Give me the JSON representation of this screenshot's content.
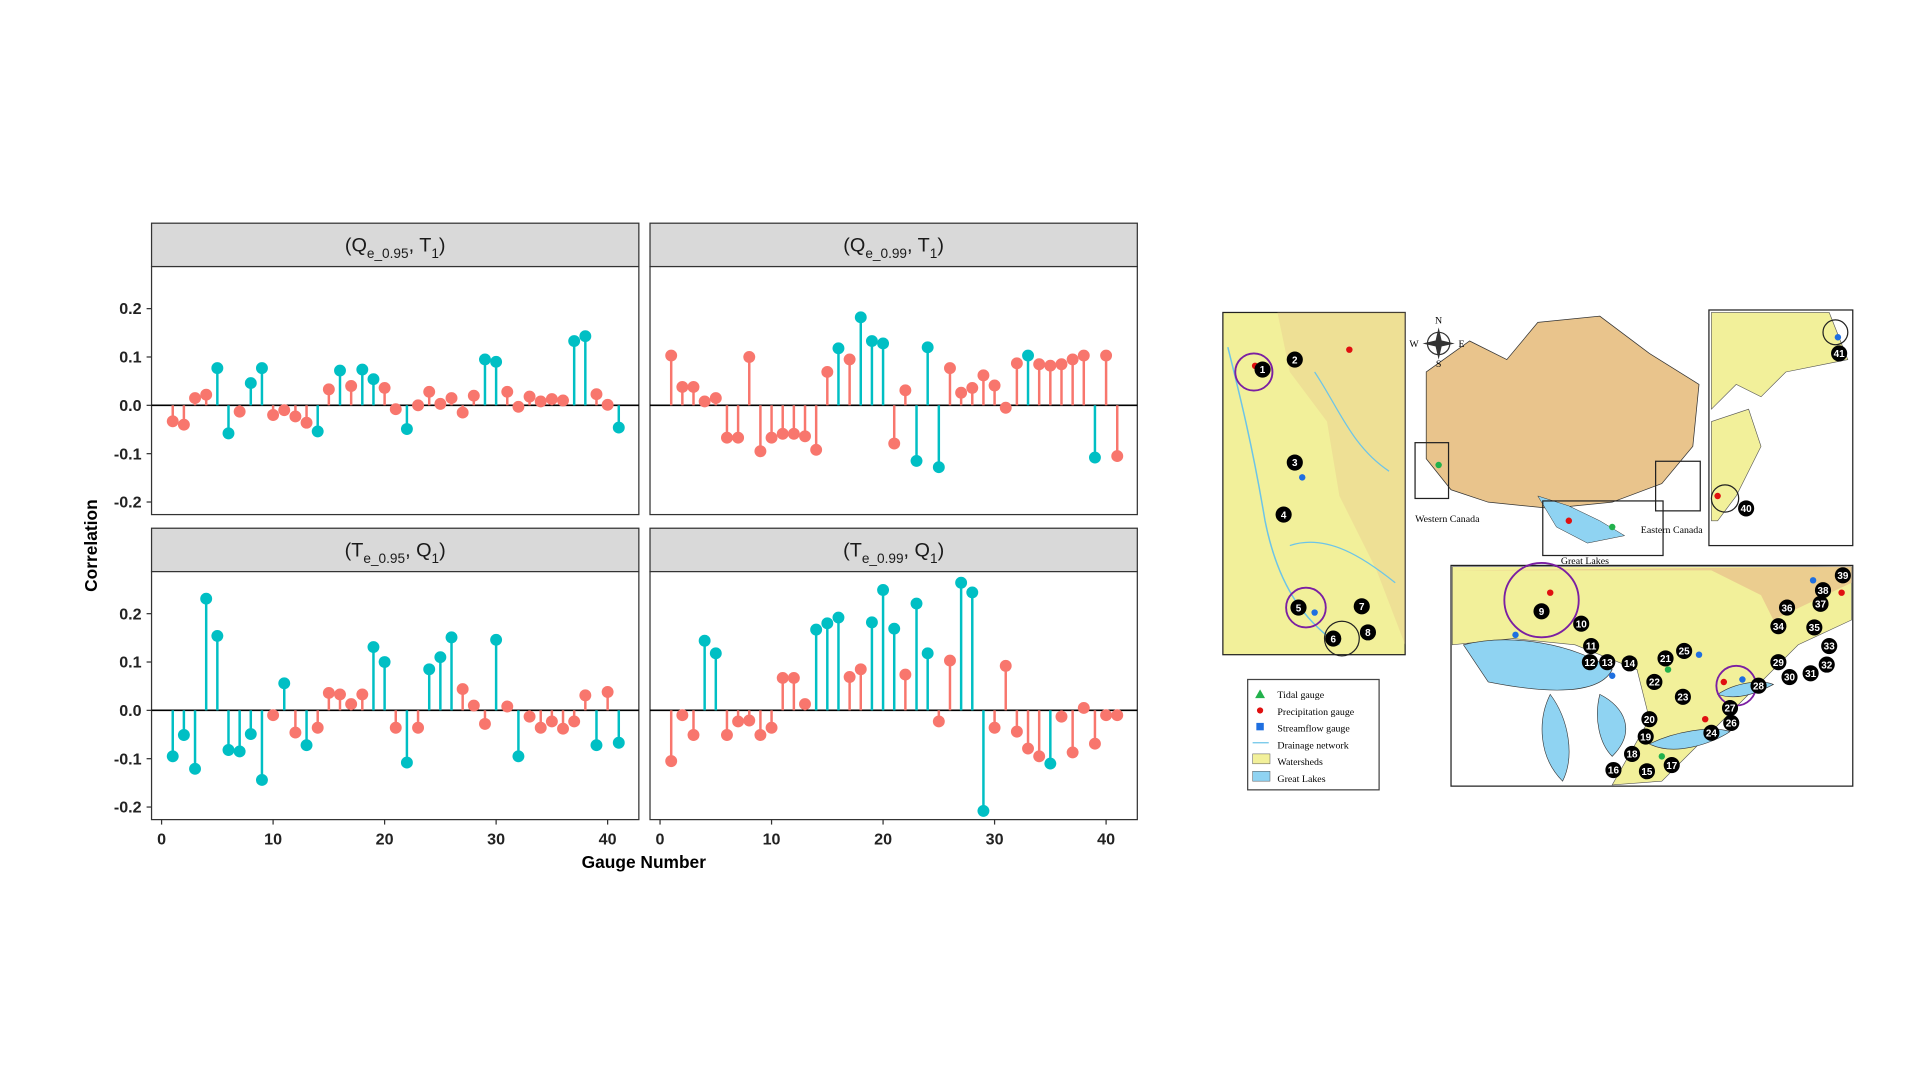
{
  "figure": {
    "x_label": "Gauge Number",
    "y_label": "Correlation"
  },
  "chart_data": [
    {
      "type": "lollipop",
      "title_parts": [
        "(Q",
        "e_0.95",
        ", T",
        "1",
        ")"
      ],
      "values": [
        -0.033,
        -0.04,
        0.015,
        0.022,
        0.077,
        -0.058,
        -0.013,
        0.046,
        0.077,
        -0.02,
        -0.01,
        -0.023,
        -0.036,
        -0.054,
        0.033,
        0.072,
        0.04,
        0.074,
        0.054,
        0.036,
        -0.008,
        -0.049,
        0.0,
        0.028,
        0.003,
        0.015,
        -0.015,
        0.02,
        0.095,
        0.09,
        0.028,
        -0.003,
        0.018,
        0.008,
        0.013,
        0.01,
        0.133,
        0.143,
        0.023,
        0.001,
        -0.046
      ],
      "colors": [
        "#F8766D",
        "#F8766D",
        "#F8766D",
        "#F8766D",
        "#00BFC4",
        "#00BFC4",
        "#F8766D",
        "#00BFC4",
        "#00BFC4",
        "#F8766D",
        "#F8766D",
        "#F8766D",
        "#F8766D",
        "#00BFC4",
        "#F8766D",
        "#00BFC4",
        "#F8766D",
        "#00BFC4",
        "#00BFC4",
        "#F8766D",
        "#F8766D",
        "#00BFC4",
        "#F8766D",
        "#F8766D",
        "#F8766D",
        "#F8766D",
        "#F8766D",
        "#F8766D",
        "#00BFC4",
        "#00BFC4",
        "#F8766D",
        "#F8766D",
        "#F8766D",
        "#F8766D",
        "#F8766D",
        "#F8766D",
        "#00BFC4",
        "#00BFC4",
        "#F8766D",
        "#F8766D",
        "#00BFC4"
      ],
      "xlim": [
        -0.9,
        42.8
      ],
      "ylim": [
        -0.226,
        0.287
      ],
      "yticks": [
        -0.2,
        -0.1,
        {
          "value": 0,
          "label": "0.0"
        },
        0.1,
        0.2
      ]
    },
    {
      "type": "lollipop",
      "title_parts": [
        "(Q",
        "e_0.99",
        ", T",
        "1",
        ")"
      ],
      "values": [
        0.103,
        0.038,
        0.038,
        0.008,
        0.015,
        -0.067,
        -0.067,
        0.1,
        -0.095,
        -0.067,
        -0.059,
        -0.059,
        -0.064,
        -0.092,
        0.069,
        0.118,
        0.095,
        0.182,
        0.133,
        0.128,
        -0.079,
        0.031,
        -0.115,
        0.12,
        -0.128,
        0.077,
        0.026,
        0.036,
        0.062,
        0.041,
        -0.005,
        0.087,
        0.103,
        0.085,
        0.082,
        0.085,
        0.095,
        0.103,
        -0.108,
        0.103,
        -0.105
      ],
      "colors": [
        "#F8766D",
        "#F8766D",
        "#F8766D",
        "#F8766D",
        "#F8766D",
        "#F8766D",
        "#F8766D",
        "#F8766D",
        "#F8766D",
        "#F8766D",
        "#F8766D",
        "#F8766D",
        "#F8766D",
        "#F8766D",
        "#F8766D",
        "#00BFC4",
        "#F8766D",
        "#00BFC4",
        "#00BFC4",
        "#00BFC4",
        "#F8766D",
        "#F8766D",
        "#00BFC4",
        "#00BFC4",
        "#00BFC4",
        "#F8766D",
        "#F8766D",
        "#F8766D",
        "#F8766D",
        "#F8766D",
        "#F8766D",
        "#F8766D",
        "#00BFC4",
        "#F8766D",
        "#F8766D",
        "#F8766D",
        "#F8766D",
        "#F8766D",
        "#00BFC4",
        "#F8766D",
        "#F8766D"
      ],
      "xlim": [
        -0.9,
        42.8
      ],
      "ylim": [
        -0.226,
        0.287
      ]
    },
    {
      "type": "lollipop",
      "title_parts": [
        "(T",
        "e_0.95",
        ", Q",
        "1",
        ")"
      ],
      "values": [
        -0.095,
        -0.051,
        -0.121,
        0.231,
        0.154,
        -0.082,
        -0.085,
        -0.049,
        -0.144,
        -0.01,
        0.056,
        -0.046,
        -0.072,
        -0.036,
        0.036,
        0.033,
        0.013,
        0.033,
        0.131,
        0.1,
        -0.036,
        -0.108,
        -0.036,
        0.085,
        0.11,
        0.151,
        0.044,
        0.01,
        -0.028,
        0.146,
        0.008,
        -0.095,
        -0.013,
        -0.036,
        -0.023,
        -0.038,
        -0.023,
        0.031,
        -0.072,
        0.038,
        -0.067
      ],
      "colors": [
        "#00BFC4",
        "#00BFC4",
        "#00BFC4",
        "#00BFC4",
        "#00BFC4",
        "#00BFC4",
        "#00BFC4",
        "#00BFC4",
        "#00BFC4",
        "#F8766D",
        "#00BFC4",
        "#F8766D",
        "#00BFC4",
        "#F8766D",
        "#F8766D",
        "#F8766D",
        "#F8766D",
        "#F8766D",
        "#00BFC4",
        "#00BFC4",
        "#F8766D",
        "#00BFC4",
        "#F8766D",
        "#00BFC4",
        "#00BFC4",
        "#00BFC4",
        "#F8766D",
        "#F8766D",
        "#F8766D",
        "#00BFC4",
        "#F8766D",
        "#00BFC4",
        "#F8766D",
        "#F8766D",
        "#F8766D",
        "#F8766D",
        "#F8766D",
        "#F8766D",
        "#00BFC4",
        "#F8766D",
        "#00BFC4"
      ],
      "xlim": [
        -0.9,
        42.8
      ],
      "ylim": [
        -0.226,
        0.287
      ],
      "xticks": [
        0,
        10,
        20,
        30,
        40
      ],
      "yticks": [
        -0.2,
        -0.1,
        {
          "value": 0,
          "label": "0.0"
        },
        0.1,
        0.2
      ]
    },
    {
      "type": "lollipop",
      "title_parts": [
        "(T",
        "e_0.99",
        ", Q",
        "1",
        ")"
      ],
      "values": [
        -0.105,
        -0.01,
        -0.051,
        0.144,
        0.118,
        -0.051,
        -0.023,
        -0.021,
        -0.051,
        -0.036,
        0.067,
        0.067,
        0.013,
        0.167,
        0.18,
        0.192,
        0.069,
        0.085,
        0.182,
        0.249,
        0.169,
        0.074,
        0.221,
        0.118,
        -0.023,
        0.103,
        0.264,
        0.244,
        -0.208,
        -0.036,
        0.092,
        -0.044,
        -0.079,
        -0.095,
        -0.11,
        -0.013,
        -0.087,
        0.005,
        -0.069,
        -0.01,
        -0.01
      ],
      "colors": [
        "#F8766D",
        "#F8766D",
        "#F8766D",
        "#00BFC4",
        "#00BFC4",
        "#F8766D",
        "#F8766D",
        "#F8766D",
        "#F8766D",
        "#F8766D",
        "#F8766D",
        "#F8766D",
        "#F8766D",
        "#00BFC4",
        "#00BFC4",
        "#00BFC4",
        "#F8766D",
        "#F8766D",
        "#00BFC4",
        "#00BFC4",
        "#00BFC4",
        "#F8766D",
        "#00BFC4",
        "#00BFC4",
        "#F8766D",
        "#F8766D",
        "#00BFC4",
        "#00BFC4",
        "#00BFC4",
        "#F8766D",
        "#F8766D",
        "#F8766D",
        "#F8766D",
        "#F8766D",
        "#00BFC4",
        "#F8766D",
        "#F8766D",
        "#F8766D",
        "#F8766D",
        "#F8766D",
        "#F8766D"
      ],
      "xlim": [
        -0.9,
        42.8
      ],
      "ylim": [
        -0.226,
        0.287
      ],
      "xticks": [
        0,
        10,
        20,
        30,
        40
      ]
    }
  ],
  "map": {
    "compass": [
      "N",
      "E",
      "S",
      "W"
    ],
    "insets": [
      "Western Canada",
      "Eastern Canada",
      "Great Lakes"
    ],
    "legend": [
      "Tidal gauge",
      "Precipitation gauge",
      "Streamflow gauge",
      "Drainage network",
      "Watersheds",
      "Great Lakes"
    ],
    "gauges": [
      "1",
      "2",
      "3",
      "4",
      "5",
      "6",
      "7",
      "8",
      "9",
      "10",
      "11",
      "12",
      "13",
      "14",
      "15",
      "16",
      "17",
      "18",
      "19",
      "20",
      "21",
      "22",
      "23",
      "24",
      "25",
      "26",
      "27",
      "28",
      "29",
      "30",
      "31",
      "32",
      "33",
      "34",
      "35",
      "36",
      "37",
      "38",
      "39",
      "40",
      "41"
    ]
  }
}
